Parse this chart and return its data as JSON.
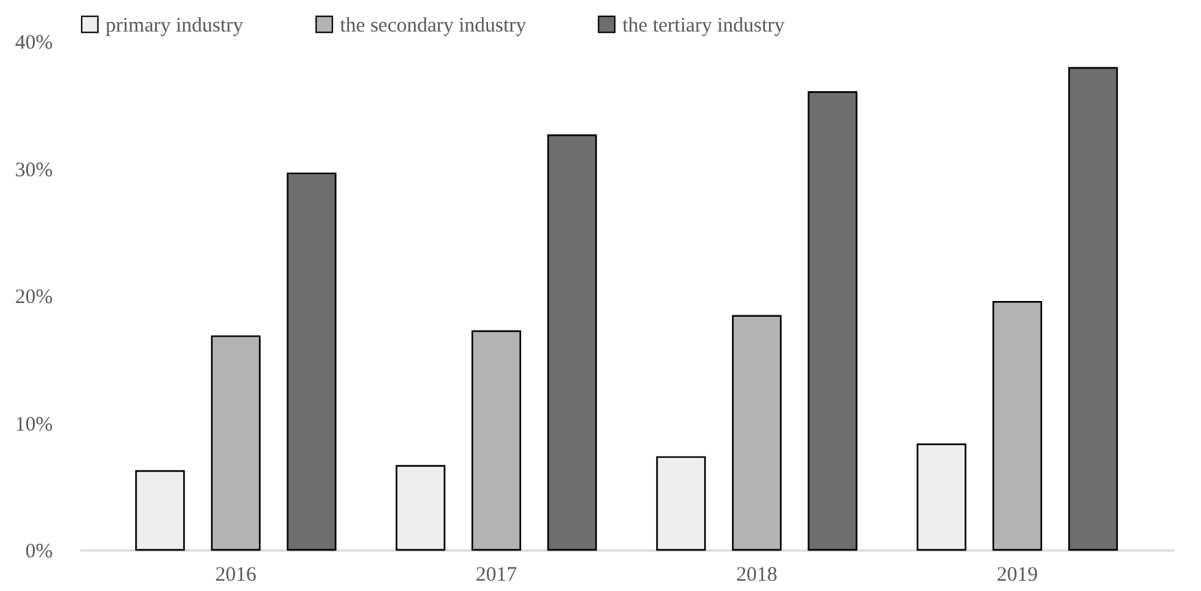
{
  "chart_data": {
    "type": "bar",
    "categories": [
      "2016",
      "2017",
      "2018",
      "2019"
    ],
    "series": [
      {
        "name": "primary industry",
        "color": "#eeeeee",
        "values": [
          6.2,
          6.6,
          7.3,
          8.3
        ]
      },
      {
        "name": "the secondary industry",
        "color": "#b3b3b3",
        "values": [
          16.8,
          17.2,
          18.4,
          19.5
        ]
      },
      {
        "name": "the tertiary industry",
        "color": "#6e6e6e",
        "values": [
          29.6,
          32.6,
          36.0,
          37.9
        ]
      }
    ],
    "ylim": [
      0,
      40
    ],
    "yticks": [
      {
        "value": 0,
        "label": "0%"
      },
      {
        "value": 10,
        "label": "10%"
      },
      {
        "value": 20,
        "label": "20%"
      },
      {
        "value": 30,
        "label": "30%"
      },
      {
        "value": 40,
        "label": "40%"
      }
    ],
    "grid": false,
    "legend": "top"
  }
}
